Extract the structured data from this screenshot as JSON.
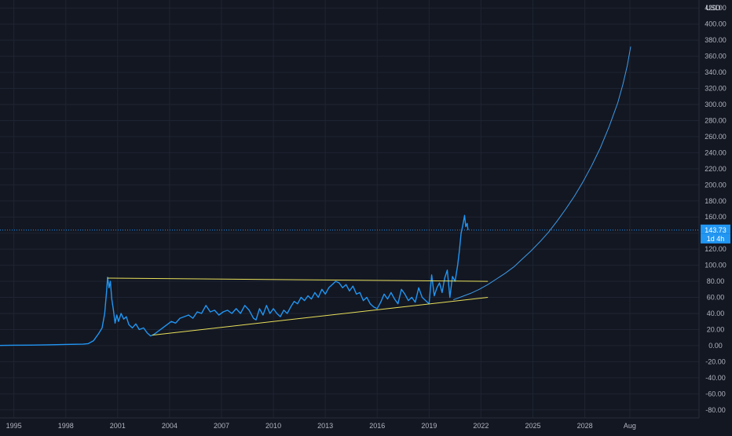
{
  "chart_data": {
    "type": "line",
    "currency": "USD",
    "y_ticks": [
      -80,
      -60,
      -40,
      -20,
      0,
      20,
      40,
      60,
      80,
      100,
      120,
      140,
      160,
      180,
      200,
      220,
      240,
      260,
      280,
      300,
      320,
      340,
      360,
      380,
      400,
      420
    ],
    "y_tick_labels": [
      "-80.00",
      "-60.00",
      "-40.00",
      "-20.00",
      "0.00",
      "20.00",
      "40.00",
      "60.00",
      "80.00",
      "100.00",
      "120.00",
      "140.00",
      "160.00",
      "180.00",
      "200.00",
      "220.00",
      "240.00",
      "260.00",
      "280.00",
      "300.00",
      "320.00",
      "340.00",
      "360.00",
      "380.00",
      "400.00",
      "420.00"
    ],
    "x_ticks": [
      {
        "label": "1995",
        "x": 1995.0
      },
      {
        "label": "1998",
        "x": 1998.0
      },
      {
        "label": "2001",
        "x": 2001.0
      },
      {
        "label": "2004",
        "x": 2004.0
      },
      {
        "label": "2007",
        "x": 2007.0
      },
      {
        "label": "2010",
        "x": 2010.0
      },
      {
        "label": "2013",
        "x": 2013.0
      },
      {
        "label": "2016",
        "x": 2016.0
      },
      {
        "label": "2019",
        "x": 2019.0
      },
      {
        "label": "2022",
        "x": 2022.0
      },
      {
        "label": "2025",
        "x": 2025.0
      },
      {
        "label": "2028",
        "x": 2028.0
      },
      {
        "label": "Aug",
        "x": 2030.6
      }
    ],
    "ylim": [
      -90,
      430
    ],
    "xlim": [
      1994.2,
      2034.6
    ],
    "grid": true,
    "current_price": 143.73,
    "current_price_label": "143.73",
    "countdown_label": "1d 4h",
    "series": [
      {
        "color": "#2196f3",
        "points": [
          [
            1994.2,
            0.2
          ],
          [
            1995.0,
            0.5
          ],
          [
            1996.0,
            0.6
          ],
          [
            1997.0,
            1.0
          ],
          [
            1998.0,
            1.5
          ],
          [
            1999.0,
            1.8
          ],
          [
            1999.3,
            2.5
          ],
          [
            1999.6,
            6
          ],
          [
            1999.9,
            15
          ],
          [
            2000.1,
            22
          ],
          [
            2000.25,
            40
          ],
          [
            2000.35,
            65
          ],
          [
            2000.42,
            85
          ],
          [
            2000.5,
            72
          ],
          [
            2000.58,
            80
          ],
          [
            2000.66,
            58
          ],
          [
            2000.75,
            45
          ],
          [
            2000.85,
            28
          ],
          [
            2000.95,
            38
          ],
          [
            2001.05,
            30
          ],
          [
            2001.2,
            40
          ],
          [
            2001.35,
            33
          ],
          [
            2001.5,
            36
          ],
          [
            2001.65,
            26
          ],
          [
            2001.85,
            22
          ],
          [
            2002.05,
            27
          ],
          [
            2002.25,
            20
          ],
          [
            2002.5,
            22
          ],
          [
            2002.7,
            16
          ],
          [
            2002.9,
            12
          ],
          [
            2003.1,
            14
          ],
          [
            2003.35,
            18
          ],
          [
            2003.6,
            22
          ],
          [
            2003.85,
            26
          ],
          [
            2004.1,
            30
          ],
          [
            2004.35,
            28
          ],
          [
            2004.6,
            34
          ],
          [
            2004.85,
            36
          ],
          [
            2005.1,
            38
          ],
          [
            2005.35,
            34
          ],
          [
            2005.6,
            42
          ],
          [
            2005.85,
            40
          ],
          [
            2006.1,
            50
          ],
          [
            2006.35,
            42
          ],
          [
            2006.6,
            44
          ],
          [
            2006.85,
            38
          ],
          [
            2007.1,
            42
          ],
          [
            2007.35,
            44
          ],
          [
            2007.6,
            40
          ],
          [
            2007.85,
            46
          ],
          [
            2008.1,
            40
          ],
          [
            2008.35,
            50
          ],
          [
            2008.6,
            44
          ],
          [
            2008.85,
            34
          ],
          [
            2009.0,
            32
          ],
          [
            2009.2,
            46
          ],
          [
            2009.4,
            38
          ],
          [
            2009.6,
            50
          ],
          [
            2009.8,
            40
          ],
          [
            2010.0,
            46
          ],
          [
            2010.2,
            40
          ],
          [
            2010.4,
            36
          ],
          [
            2010.6,
            44
          ],
          [
            2010.8,
            40
          ],
          [
            2011.0,
            48
          ],
          [
            2011.2,
            55
          ],
          [
            2011.4,
            52
          ],
          [
            2011.6,
            60
          ],
          [
            2011.8,
            56
          ],
          [
            2012.0,
            62
          ],
          [
            2012.2,
            58
          ],
          [
            2012.4,
            66
          ],
          [
            2012.6,
            60
          ],
          [
            2012.8,
            70
          ],
          [
            2013.0,
            64
          ],
          [
            2013.2,
            72
          ],
          [
            2013.4,
            76
          ],
          [
            2013.6,
            80
          ],
          [
            2013.8,
            78
          ],
          [
            2014.0,
            72
          ],
          [
            2014.2,
            76
          ],
          [
            2014.4,
            68
          ],
          [
            2014.6,
            74
          ],
          [
            2014.8,
            64
          ],
          [
            2015.0,
            66
          ],
          [
            2015.2,
            56
          ],
          [
            2015.4,
            60
          ],
          [
            2015.6,
            52
          ],
          [
            2015.8,
            48
          ],
          [
            2016.0,
            46
          ],
          [
            2016.2,
            54
          ],
          [
            2016.4,
            64
          ],
          [
            2016.6,
            58
          ],
          [
            2016.8,
            66
          ],
          [
            2017.0,
            58
          ],
          [
            2017.2,
            52
          ],
          [
            2017.4,
            70
          ],
          [
            2017.6,
            64
          ],
          [
            2017.8,
            56
          ],
          [
            2018.0,
            60
          ],
          [
            2018.2,
            54
          ],
          [
            2018.4,
            72
          ],
          [
            2018.6,
            60
          ],
          [
            2018.8,
            56
          ],
          [
            2019.0,
            52
          ],
          [
            2019.15,
            88
          ],
          [
            2019.3,
            62
          ],
          [
            2019.45,
            72
          ],
          [
            2019.6,
            78
          ],
          [
            2019.75,
            66
          ],
          [
            2019.9,
            84
          ],
          [
            2020.05,
            94
          ],
          [
            2020.2,
            60
          ],
          [
            2020.35,
            86
          ],
          [
            2020.5,
            80
          ],
          [
            2020.65,
            100
          ],
          [
            2020.75,
            118
          ],
          [
            2020.85,
            140
          ],
          [
            2020.95,
            150
          ],
          [
            2021.05,
            162
          ],
          [
            2021.12,
            148
          ],
          [
            2021.2,
            152
          ],
          [
            2021.25,
            143.73
          ]
        ]
      },
      {
        "color": "#3d9be9",
        "points": [
          [
            2020.4,
            57
          ],
          [
            2020.9,
            61
          ],
          [
            2021.4,
            65
          ],
          [
            2021.9,
            70
          ],
          [
            2022.4,
            76
          ],
          [
            2022.9,
            83
          ],
          [
            2023.4,
            90
          ],
          [
            2023.9,
            98
          ],
          [
            2024.4,
            108
          ],
          [
            2024.9,
            118
          ],
          [
            2025.4,
            129
          ],
          [
            2025.9,
            141
          ],
          [
            2026.4,
            155
          ],
          [
            2026.9,
            170
          ],
          [
            2027.4,
            186
          ],
          [
            2027.9,
            204
          ],
          [
            2028.4,
            224
          ],
          [
            2028.9,
            246
          ],
          [
            2029.4,
            272
          ],
          [
            2029.9,
            302
          ],
          [
            2030.2,
            325
          ],
          [
            2030.45,
            348
          ],
          [
            2030.65,
            372
          ]
        ]
      },
      {
        "color": "#e8e05a",
        "points": [
          [
            2000.4,
            84
          ],
          [
            2022.4,
            80
          ]
        ]
      },
      {
        "color": "#e8e05a",
        "points": [
          [
            2003.0,
            13
          ],
          [
            2022.4,
            60
          ]
        ]
      }
    ]
  }
}
